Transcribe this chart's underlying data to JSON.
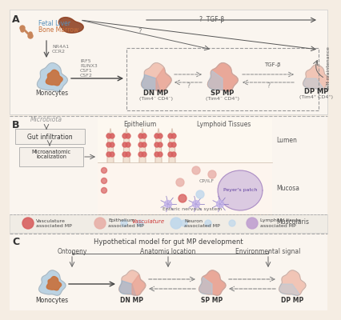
{
  "bg": "#f5ede3",
  "white_bg": "#ffffff",
  "panel_bg": "#faf5ef",
  "cc": {
    "blue": "#8cb4d5",
    "orange": "#c8703a",
    "pink": "#e8a090",
    "pink_light": "#f0c0b0",
    "blue_light": "#b0cce0",
    "purple": "#b89ac8",
    "red_cell": "#d86060",
    "pink_cell": "#e8b0a8",
    "blue_cell": "#c0d8ec",
    "purple_cell": "#c0a0d0",
    "vasculature_pink": "#f0c8c0",
    "gut_outline": "#d8b8a8",
    "neuron_purple": "#c0b0e8"
  },
  "labels": {
    "A": "A",
    "B": "B",
    "C": "C",
    "fetal_liver": "Fetal Liver",
    "bone_marrow": "Bone Marrow",
    "monocytes": "Monocytes",
    "dn_mp": "DN MP",
    "sp_mp": "SP MP",
    "dp_mp": "DP MP",
    "dn_sub": "(Tim4⁻ CD4⁻)",
    "sp_sub": "(Tim4⁻ CD4⁺)",
    "dp_sub": "(Tim4⁺ CD4⁺)",
    "nr4a1": "NR4A1",
    "ccr2": "CCR2",
    "irf5": "IRF5",
    "runx3": "RUNX3",
    "csf1": "CSF1",
    "csf2": "CSF2",
    "tgf_b": "TGF-β",
    "self_maint": "Self-maintenance",
    "q": "?",
    "microbiota": "Microbiota",
    "gut_infil": "Gut infiltration",
    "microanat": "Microanatomic\nlocalization",
    "epithelium": "Epithelium",
    "lymphoid": "Lymphoid Tissues",
    "peyers": "Peyer's patch",
    "cp_ilf": "CP/ILF",
    "enteric": "Enteric nervous system",
    "vasculature": "Vasculature",
    "lumen": "Lumen",
    "mucosa": "Mucosa",
    "muscularis": "Muscularis",
    "vasc_mp": "Vasculature\nassociated MP",
    "epith_mp": "Epithelium\nassociated MP",
    "neuron_mp": "Neuron\nassociated MP",
    "lymph_mp": "Lymphoid tissue\nassociated MP",
    "hyp_title": "Hypothetical model for gut MP development",
    "ontogeny": "Ontogeny",
    "anat_loc": "Anatomic location",
    "env_sig": "Environmental signal"
  }
}
